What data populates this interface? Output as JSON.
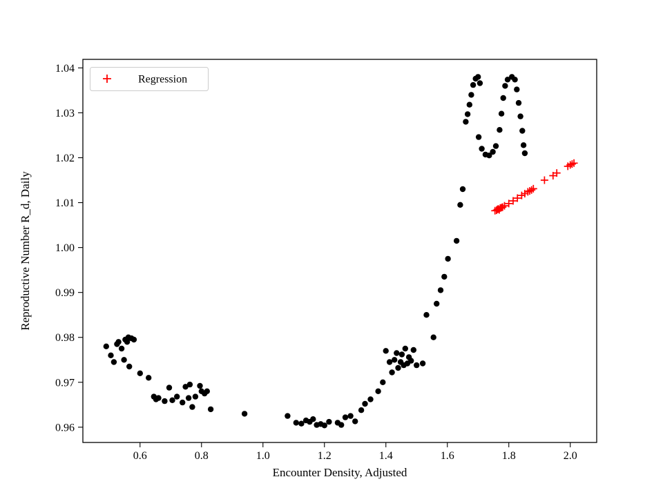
{
  "figure": {
    "background": "#ffffff"
  },
  "chart_data": {
    "type": "scatter",
    "title": "",
    "xlabel": "Encounter Density, Adjusted",
    "ylabel": "Reproductive Number R_d, Daily",
    "xlim": [
      0.414,
      2.086
    ],
    "ylim": [
      0.9566,
      1.0419
    ],
    "xticks": [
      0.6,
      0.8,
      1.0,
      1.2,
      1.4,
      1.6,
      1.8,
      2.0
    ],
    "xtick_labels": [
      "0.6",
      "0.8",
      "1.0",
      "1.2",
      "1.4",
      "1.6",
      "1.8",
      "2.0"
    ],
    "yticks": [
      0.96,
      0.97,
      0.98,
      0.99,
      1.0,
      1.01,
      1.02,
      1.03,
      1.04
    ],
    "ytick_labels": [
      "0.96",
      "0.97",
      "0.98",
      "0.99",
      "1.00",
      "1.01",
      "1.02",
      "1.03",
      "1.04"
    ],
    "grid": false,
    "legend": {
      "position": "upper left",
      "entries": [
        {
          "label": "Regression",
          "marker": "plus",
          "color": "#ff0000"
        }
      ]
    },
    "series": [
      {
        "name": "observed",
        "marker": "circle",
        "color": "#000000",
        "points": [
          [
            0.49,
            0.978
          ],
          [
            0.505,
            0.976
          ],
          [
            0.515,
            0.9745
          ],
          [
            0.525,
            0.9785
          ],
          [
            0.53,
            0.979
          ],
          [
            0.54,
            0.9775
          ],
          [
            0.548,
            0.975
          ],
          [
            0.552,
            0.9795
          ],
          [
            0.558,
            0.979
          ],
          [
            0.562,
            0.98
          ],
          [
            0.565,
            0.9735
          ],
          [
            0.572,
            0.9798
          ],
          [
            0.58,
            0.9795
          ],
          [
            0.6,
            0.972
          ],
          [
            0.628,
            0.971
          ],
          [
            0.645,
            0.9668
          ],
          [
            0.652,
            0.9662
          ],
          [
            0.66,
            0.9665
          ],
          [
            0.68,
            0.9658
          ],
          [
            0.695,
            0.9688
          ],
          [
            0.705,
            0.966
          ],
          [
            0.72,
            0.9668
          ],
          [
            0.738,
            0.9655
          ],
          [
            0.748,
            0.969
          ],
          [
            0.758,
            0.9665
          ],
          [
            0.762,
            0.9695
          ],
          [
            0.77,
            0.9645
          ],
          [
            0.78,
            0.9668
          ],
          [
            0.795,
            0.9692
          ],
          [
            0.8,
            0.968
          ],
          [
            0.81,
            0.9675
          ],
          [
            0.818,
            0.968
          ],
          [
            0.83,
            0.964
          ],
          [
            0.94,
            0.963
          ],
          [
            1.08,
            0.9625
          ],
          [
            1.108,
            0.961
          ],
          [
            1.125,
            0.9608
          ],
          [
            1.14,
            0.9615
          ],
          [
            1.152,
            0.9612
          ],
          [
            1.163,
            0.9618
          ],
          [
            1.175,
            0.9605
          ],
          [
            1.188,
            0.9607
          ],
          [
            1.2,
            0.9604
          ],
          [
            1.215,
            0.9612
          ],
          [
            1.243,
            0.961
          ],
          [
            1.255,
            0.9605
          ],
          [
            1.268,
            0.9622
          ],
          [
            1.285,
            0.9625
          ],
          [
            1.3,
            0.9613
          ],
          [
            1.32,
            0.9638
          ],
          [
            1.332,
            0.9652
          ],
          [
            1.35,
            0.9662
          ],
          [
            1.375,
            0.968
          ],
          [
            1.39,
            0.97
          ],
          [
            1.4,
            0.977
          ],
          [
            1.412,
            0.9745
          ],
          [
            1.42,
            0.9722
          ],
          [
            1.428,
            0.975
          ],
          [
            1.435,
            0.9765
          ],
          [
            1.44,
            0.9732
          ],
          [
            1.448,
            0.9745
          ],
          [
            1.452,
            0.9762
          ],
          [
            1.458,
            0.9738
          ],
          [
            1.463,
            0.9775
          ],
          [
            1.47,
            0.9742
          ],
          [
            1.475,
            0.9756
          ],
          [
            1.482,
            0.9748
          ],
          [
            1.49,
            0.9772
          ],
          [
            1.5,
            0.9738
          ],
          [
            1.52,
            0.9742
          ],
          [
            1.532,
            0.985
          ],
          [
            1.555,
            0.98
          ],
          [
            1.565,
            0.9875
          ],
          [
            1.578,
            0.9905
          ],
          [
            1.59,
            0.9935
          ],
          [
            1.602,
            0.9975
          ],
          [
            1.63,
            1.0015
          ],
          [
            1.642,
            1.0095
          ],
          [
            1.65,
            1.013
          ],
          [
            1.66,
            1.028
          ],
          [
            1.666,
            1.0297
          ],
          [
            1.672,
            1.0318
          ],
          [
            1.678,
            1.034
          ],
          [
            1.684,
            1.0362
          ],
          [
            1.692,
            1.0376
          ],
          [
            1.7,
            1.038
          ],
          [
            1.706,
            1.0366
          ],
          [
            1.702,
            1.0246
          ],
          [
            1.712,
            1.022
          ],
          [
            1.724,
            1.0207
          ],
          [
            1.736,
            1.0205
          ],
          [
            1.748,
            1.0213
          ],
          [
            1.758,
            1.0226
          ],
          [
            1.77,
            1.0262
          ],
          [
            1.776,
            1.0298
          ],
          [
            1.782,
            1.0333
          ],
          [
            1.788,
            1.036
          ],
          [
            1.796,
            1.0374
          ],
          [
            1.81,
            1.038
          ],
          [
            1.82,
            1.0374
          ],
          [
            1.826,
            1.0352
          ],
          [
            1.832,
            1.0322
          ],
          [
            1.838,
            1.0292
          ],
          [
            1.844,
            1.026
          ],
          [
            1.848,
            1.0228
          ],
          [
            1.852,
            1.021
          ]
        ]
      },
      {
        "name": "Regression",
        "marker": "plus",
        "color": "#ff0000",
        "points": [
          [
            1.755,
            1.0082
          ],
          [
            1.76,
            1.0083
          ],
          [
            1.763,
            1.0085
          ],
          [
            1.766,
            1.0086
          ],
          [
            1.769,
            1.0084
          ],
          [
            1.772,
            1.0088
          ],
          [
            1.776,
            1.0089
          ],
          [
            1.78,
            1.009
          ],
          [
            1.786,
            1.0093
          ],
          [
            1.8,
            1.0098
          ],
          [
            1.814,
            1.0104
          ],
          [
            1.828,
            1.011
          ],
          [
            1.842,
            1.0116
          ],
          [
            1.852,
            1.012
          ],
          [
            1.862,
            1.0124
          ],
          [
            1.868,
            1.0126
          ],
          [
            1.874,
            1.0128
          ],
          [
            1.88,
            1.0131
          ],
          [
            1.916,
            1.015
          ],
          [
            1.944,
            1.016
          ],
          [
            1.956,
            1.0166
          ],
          [
            1.992,
            1.0181
          ],
          [
            2.0,
            1.0184
          ],
          [
            2.006,
            1.0186
          ],
          [
            2.012,
            1.0188
          ]
        ]
      }
    ]
  }
}
